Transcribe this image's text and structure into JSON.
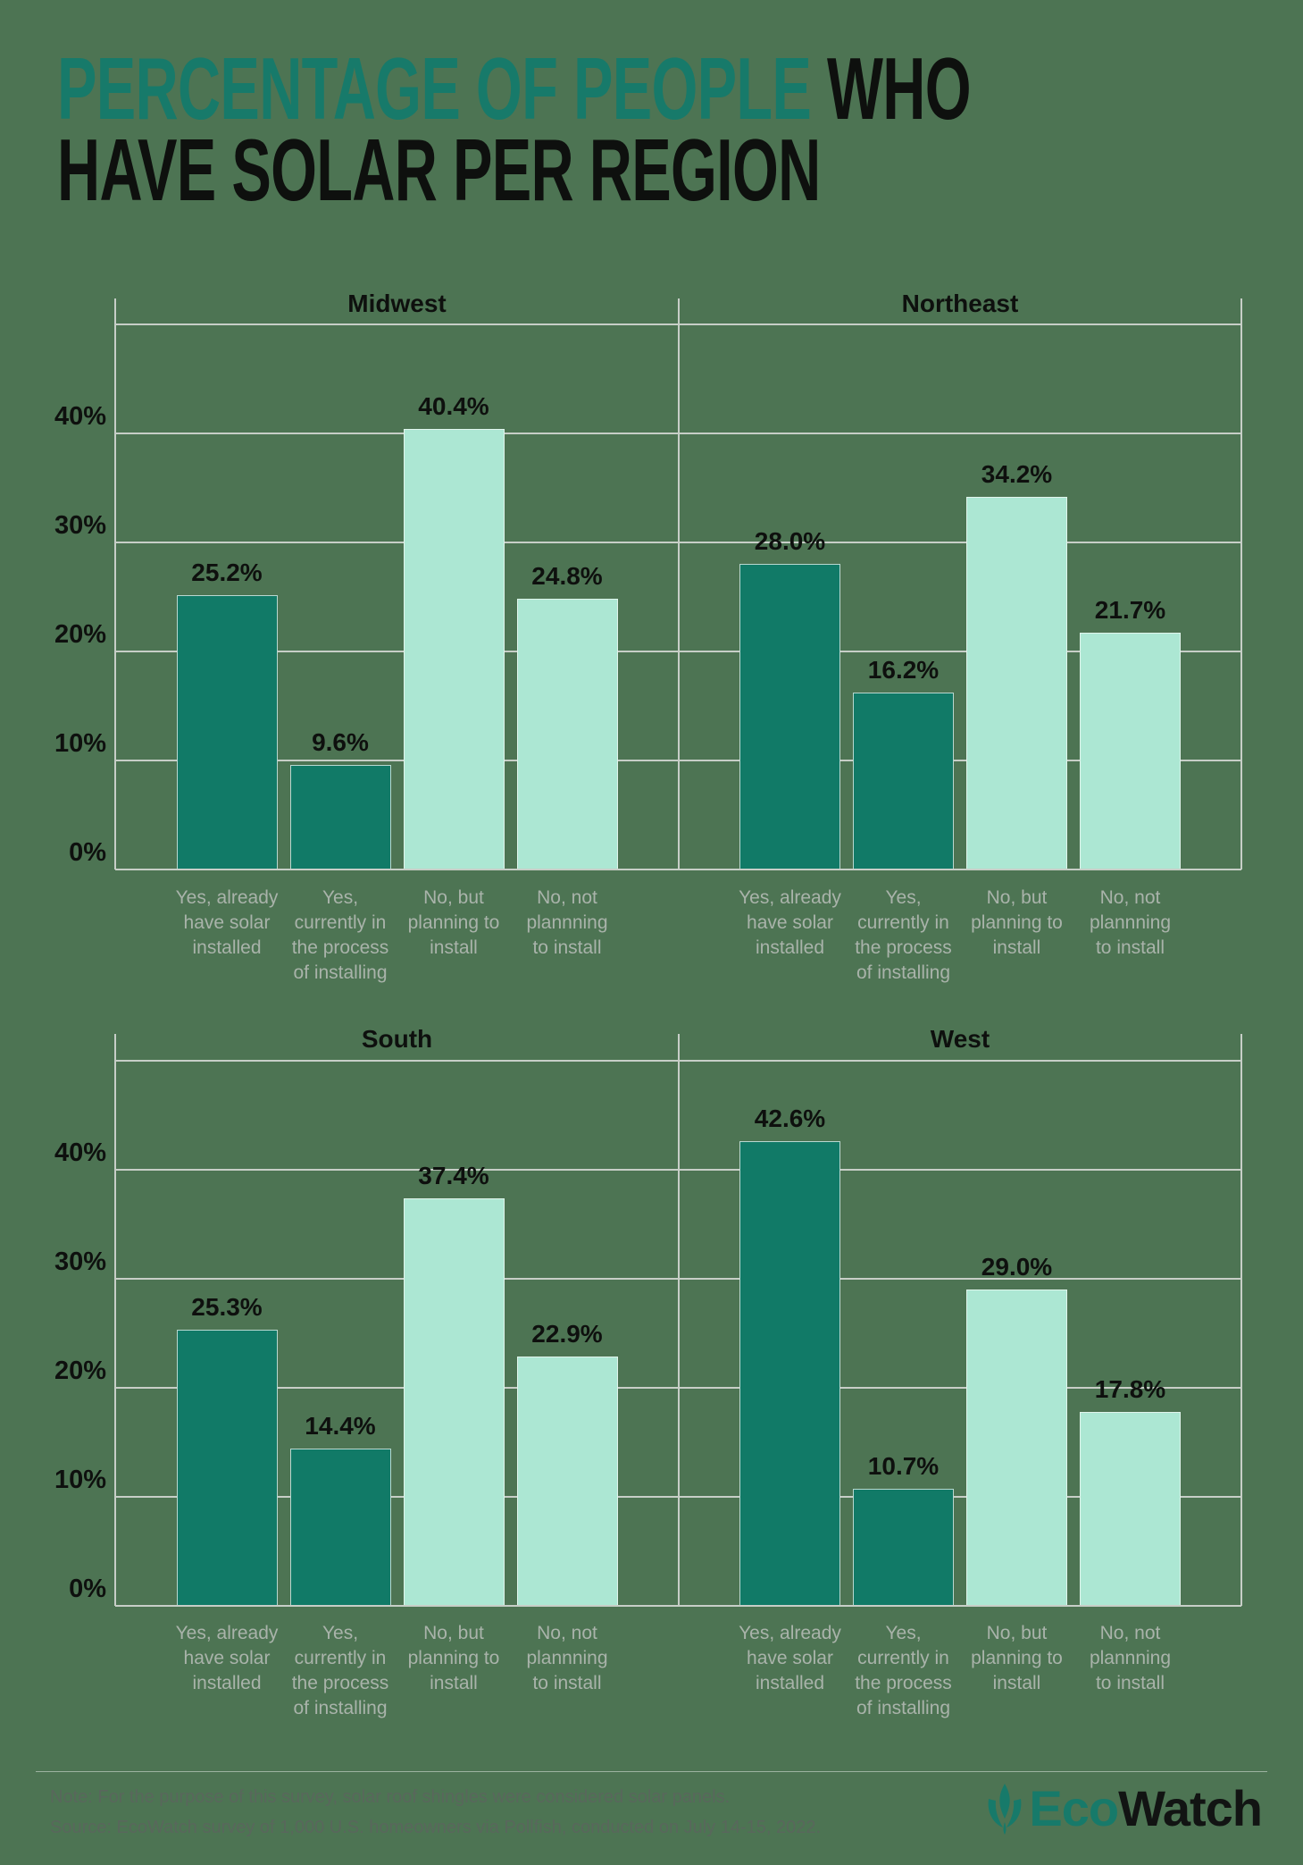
{
  "title": {
    "accent": "PERCENTAGE OF PEOPLE",
    "rest": " WHO",
    "line2": "HAVE SOLAR PER REGION"
  },
  "colors": {
    "background": "#4d7453",
    "ink": "#0e100e",
    "title_accent": "#177a6a",
    "bar_dark": "#117a67",
    "bar_light": "#ace7d3",
    "grid": "#c7cec7",
    "category_label": "#a9b3aa",
    "footer_text": "#59675c"
  },
  "y_axis_labels": [
    "0%",
    "10%",
    "20%",
    "30%",
    "40%"
  ],
  "categories_lines": [
    [
      "Yes, already",
      "have solar",
      "installed"
    ],
    [
      "Yes,",
      "currently in",
      "the process",
      "of installing"
    ],
    [
      "No, but",
      "planning to",
      "install"
    ],
    [
      "No, not",
      "plannning",
      "to install"
    ]
  ],
  "footer": {
    "note": "Note: For the purpose of this survey, solar roof shingles were considered solar panels.",
    "source": "Source: EcoWatch survey of 1,000 U.S. homeowners via Pollfish, conducted on July 14-15, 2022.",
    "brand_eco": "Eco",
    "brand_watch": "Watch"
  },
  "chart_data": {
    "type": "bar",
    "title": "Percentage of People Who Have Solar Per Region",
    "layout": "2x2 small multiples, shared axes",
    "categories": [
      "Yes, already have solar installed",
      "Yes, currently in the process of installing",
      "No, but planning to install",
      "No, not plannning to install"
    ],
    "series": [
      {
        "name": "Midwest",
        "values": [
          25.2,
          9.6,
          40.4,
          24.8
        ],
        "value_labels": [
          "25.2%",
          "9.6%",
          "40.4%",
          "24.8%"
        ]
      },
      {
        "name": "Northeast",
        "values": [
          28.0,
          16.2,
          34.2,
          21.7
        ],
        "value_labels": [
          "28.0%",
          "16.2%",
          "34.2%",
          "21.7%"
        ]
      },
      {
        "name": "South",
        "values": [
          25.3,
          14.4,
          37.4,
          22.9
        ],
        "value_labels": [
          "25.3%",
          "14.4%",
          "37.4%",
          "22.9%"
        ]
      },
      {
        "name": "West",
        "values": [
          42.6,
          10.7,
          29.0,
          17.8
        ],
        "value_labels": [
          "42.6%",
          "10.7%",
          "29.0%",
          "17.8%"
        ]
      }
    ],
    "bar_color_roles": [
      "dark",
      "dark",
      "light",
      "light"
    ],
    "ylim": [
      0,
      50
    ],
    "yticks": [
      0,
      10,
      20,
      30,
      40
    ],
    "grid": true,
    "legend_position": "none"
  }
}
